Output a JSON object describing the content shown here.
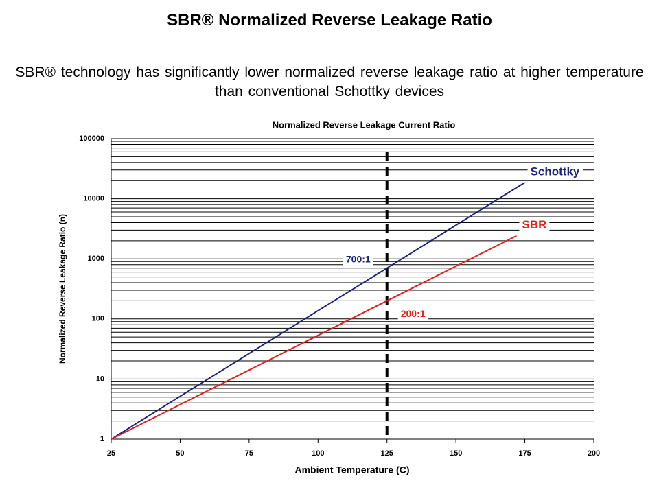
{
  "header": {
    "title": "SBR® Normalized Reverse Leakage Ratio",
    "subtitle": "SBR® technology has significantly lower normalized reverse leakage ratio at higher temperature than conventional Schottky devices"
  },
  "chart_data": {
    "type": "line",
    "title": "Normalized Reverse Leakage Current Ratio",
    "xlabel": "Ambient Temperature (C)",
    "ylabel": "Normalized Reverse Leakage Ratio (n)",
    "xlim": [
      25,
      200
    ],
    "xticks": [
      25,
      50,
      75,
      100,
      125,
      150,
      175,
      200
    ],
    "ylim": [
      1,
      100000
    ],
    "yticks": [
      1,
      10,
      100,
      1000,
      10000,
      100000
    ],
    "log_y": true,
    "grid": true,
    "minor_grid": true,
    "series": [
      {
        "name": "Schottky",
        "color": "#1b237a",
        "x": [
          25,
          50,
          75,
          100,
          125,
          150,
          175
        ],
        "values": [
          1,
          5.15,
          26.5,
          137,
          700,
          3620,
          18600
        ]
      },
      {
        "name": "SBR",
        "color": "#e3201b",
        "x": [
          25,
          50,
          75,
          100,
          125,
          150,
          172
        ],
        "values": [
          1,
          3.76,
          14.1,
          53.2,
          200,
          752,
          2415
        ]
      }
    ],
    "vline": 125,
    "annotations": [
      {
        "text": "700:1",
        "x": 125,
        "y": 700,
        "color": "#1b237a"
      },
      {
        "text": "200:1",
        "x": 125,
        "y": 200,
        "color": "#e3201b"
      }
    ]
  }
}
